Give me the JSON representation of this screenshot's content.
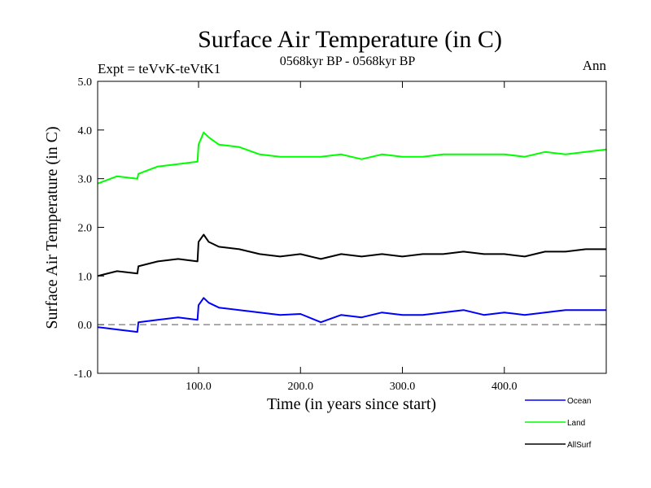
{
  "header": {
    "title": "Surface Air Temperature (in C)",
    "subtitle": "0568kyr BP - 0568kyr BP",
    "expt": "Expt = teVvK-teVtK1",
    "season": "Ann"
  },
  "colors": {
    "ocean": "#0000ff",
    "land": "#00ff00",
    "allsurf": "#000000",
    "zero_line": "#555555"
  },
  "chart_data": {
    "type": "line",
    "xlabel": "Time (in years since start)",
    "ylabel": "Surface Air Temperature (in C)",
    "xlim": [
      1,
      500
    ],
    "ylim": [
      -1.0,
      5.0
    ],
    "x_ticks": [
      100,
      200,
      300,
      400
    ],
    "x_tick_labels": [
      "100.0",
      "200.0",
      "300.0",
      "400.0"
    ],
    "y_ticks": [
      -1.0,
      0.0,
      1.0,
      2.0,
      3.0,
      4.0,
      5.0
    ],
    "y_tick_labels": [
      "-1.0",
      "0.0",
      "1.0",
      "2.0",
      "3.0",
      "4.0",
      "5.0"
    ],
    "reference_line": {
      "y": 0.0,
      "style": "dashed"
    },
    "grid": false,
    "legend_placement": "bottom-right, below plot",
    "series": [
      {
        "name": "Ocean",
        "color_key": "ocean",
        "x": [
          1,
          20,
          40,
          41,
          60,
          80,
          99,
          100,
          105,
          110,
          120,
          140,
          160,
          180,
          200,
          220,
          240,
          260,
          280,
          300,
          320,
          340,
          360,
          380,
          400,
          420,
          440,
          460,
          480,
          500
        ],
        "y": [
          -0.05,
          -0.1,
          -0.15,
          0.05,
          0.1,
          0.15,
          0.1,
          0.4,
          0.55,
          0.45,
          0.35,
          0.3,
          0.25,
          0.2,
          0.22,
          0.05,
          0.2,
          0.15,
          0.25,
          0.2,
          0.2,
          0.25,
          0.3,
          0.2,
          0.25,
          0.2,
          0.25,
          0.3,
          0.3,
          0.3
        ]
      },
      {
        "name": "Land",
        "color_key": "land",
        "x": [
          1,
          20,
          40,
          41,
          60,
          80,
          99,
          100,
          105,
          110,
          120,
          140,
          160,
          180,
          200,
          220,
          240,
          260,
          280,
          300,
          320,
          340,
          360,
          380,
          400,
          420,
          440,
          460,
          480,
          500
        ],
        "y": [
          2.9,
          3.05,
          3.0,
          3.1,
          3.25,
          3.3,
          3.35,
          3.7,
          3.95,
          3.85,
          3.7,
          3.65,
          3.5,
          3.45,
          3.45,
          3.45,
          3.5,
          3.4,
          3.5,
          3.45,
          3.45,
          3.5,
          3.5,
          3.5,
          3.5,
          3.45,
          3.55,
          3.5,
          3.55,
          3.6
        ]
      },
      {
        "name": "AllSurf",
        "color_key": "allsurf",
        "x": [
          1,
          20,
          40,
          41,
          60,
          80,
          99,
          100,
          105,
          110,
          120,
          140,
          160,
          180,
          200,
          220,
          240,
          260,
          280,
          300,
          320,
          340,
          360,
          380,
          400,
          420,
          440,
          460,
          480,
          500
        ],
        "y": [
          1.0,
          1.1,
          1.05,
          1.2,
          1.3,
          1.35,
          1.3,
          1.7,
          1.85,
          1.7,
          1.6,
          1.55,
          1.45,
          1.4,
          1.45,
          1.35,
          1.45,
          1.4,
          1.45,
          1.4,
          1.45,
          1.45,
          1.5,
          1.45,
          1.45,
          1.4,
          1.5,
          1.5,
          1.55,
          1.55
        ]
      }
    ]
  },
  "legend": {
    "items": [
      {
        "label": "Ocean",
        "color_key": "ocean"
      },
      {
        "label": "Land",
        "color_key": "land"
      },
      {
        "label": "AllSurf",
        "color_key": "allsurf"
      }
    ]
  }
}
